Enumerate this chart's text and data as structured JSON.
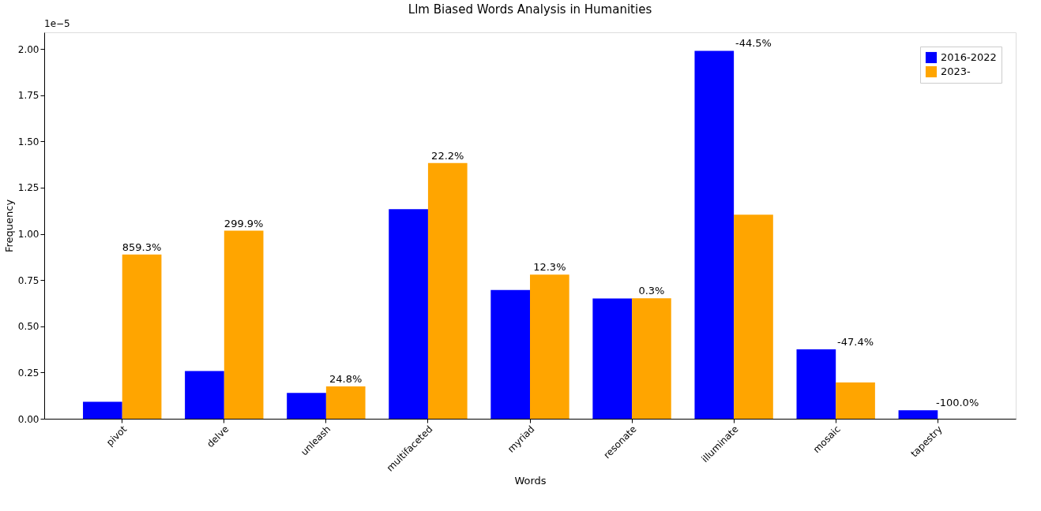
{
  "chart_data": {
    "type": "bar",
    "title": "Llm Biased Words Analysis in Humanities",
    "xlabel": "Words",
    "ylabel": "Frequency",
    "categories": [
      "pivot",
      "delve",
      "unleash",
      "multifaceted",
      "myriad",
      "resonate",
      "illuminate",
      "mosaic",
      "tapestry"
    ],
    "series": [
      {
        "name": "2016-2022",
        "color": "#0000ff",
        "values": [
          0.092,
          0.258,
          0.14,
          1.133,
          0.696,
          0.65,
          1.99,
          0.375,
          0.046
        ]
      },
      {
        "name": "2023-",
        "color": "#ffa500",
        "values": [
          0.888,
          1.017,
          0.175,
          1.383,
          0.779,
          0.652,
          1.104,
          0.196,
          0.0
        ]
      }
    ],
    "ylim": [
      0,
      2.09
    ],
    "yticks": [
      {
        "value": 0,
        "label": "0.00"
      },
      {
        "value": 0.25,
        "label": "0.25"
      },
      {
        "value": 0.5,
        "label": "0.50"
      },
      {
        "value": 0.75,
        "label": "0.75"
      },
      {
        "value": 1,
        "label": "1.00"
      },
      {
        "value": 1.25,
        "label": "1.25"
      },
      {
        "value": 1.5,
        "label": "1.50"
      },
      {
        "value": 1.75,
        "label": "1.75"
      },
      {
        "value": 2,
        "label": "2.00"
      }
    ],
    "annotations": [
      "1e−5",
      {
        "text": "859.3%",
        "x": "pivot",
        "y": 0.888
      },
      {
        "text": "299.9%",
        "x": "delve",
        "y": 1.017
      },
      {
        "text": "24.8%",
        "x": "unleash",
        "y": 0.175
      },
      {
        "text": "22.2%",
        "x": "multifaceted",
        "y": 1.383
      },
      {
        "text": "12.3%",
        "x": "myriad",
        "y": 0.779
      },
      {
        "text": "0.3%",
        "x": "resonate",
        "y": 0.652
      },
      {
        "text": "-44.5%",
        "x": "illuminate",
        "y": 1.99
      },
      {
        "text": "-47.4%",
        "x": "mosaic",
        "y": 0.375
      },
      {
        "text": "-100.0%",
        "x": "tapestry",
        "y": 0.046
      }
    ],
    "legend": "top right",
    "grid": false
  }
}
